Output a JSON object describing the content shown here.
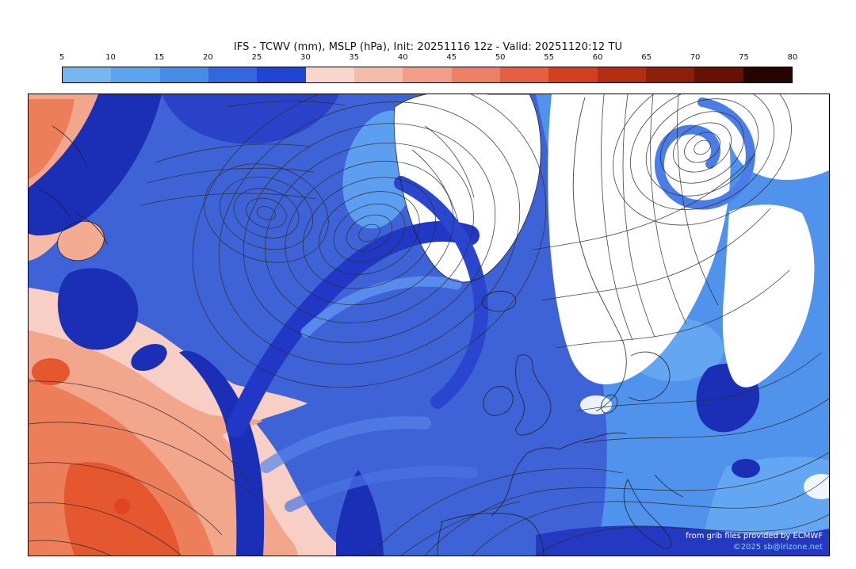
{
  "header": {
    "title": "IFS - TCWV (mm), MSLP (hPa), Init: 20251116 12z - Valid: 20251120:12 TU"
  },
  "colorbar": {
    "ticks": [
      "5",
      "10",
      "15",
      "20",
      "25",
      "30",
      "35",
      "40",
      "45",
      "50",
      "55",
      "60",
      "65",
      "70",
      "75",
      "80"
    ],
    "colors": [
      "#76B7F2",
      "#5CA4EF",
      "#468CE9",
      "#3168E0",
      "#1C46D3",
      "#F8D6CD",
      "#F5BBAC",
      "#F19D89",
      "#EC7F64",
      "#E55F40",
      "#D4401F",
      "#B32D10",
      "#8F1E08",
      "#661103",
      "#260500"
    ],
    "border_color": "#000000"
  },
  "map": {
    "credits": {
      "line1": "from grib files provided by ECMWF",
      "line2": "©2025 sb@lrizone.net"
    },
    "palette": {
      "ocean_mid_blue": "#3E63D7",
      "ocean_light_blue": "#5093EC",
      "dark_navy": "#1B2EB6",
      "dry_white": "#FFFFFF",
      "moist_pink": "#F7CFC5",
      "moist_salmon": "#F2A78D",
      "moist_orange": "#EC7E5A",
      "moist_red": "#E4572F",
      "contour_line": "#2F2F2F",
      "coastline": "#1F1F1F"
    }
  }
}
